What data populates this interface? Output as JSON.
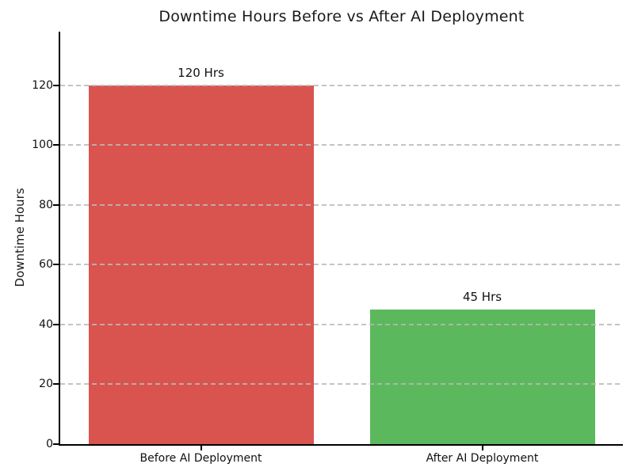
{
  "chart_data": {
    "type": "bar",
    "title": "Downtime Hours Before vs After AI Deployment",
    "xlabel": "",
    "ylabel": "Downtime Hours",
    "categories": [
      "Before AI Deployment",
      "After AI Deployment"
    ],
    "values": [
      120,
      45
    ],
    "bar_labels": [
      "120 Hrs",
      "45 Hrs"
    ],
    "bar_colors": [
      "#d9534f",
      "#5cb85c"
    ],
    "yticks": [
      0,
      20,
      40,
      60,
      80,
      100,
      120
    ],
    "ylim": [
      0,
      138
    ],
    "grid": "horizontal dashed, drawn above bars",
    "grid_color": "#bdbdbd",
    "axis_color": "#000000",
    "text_color": "#1a1a1a",
    "legend": "none",
    "spines": [
      "left",
      "bottom"
    ]
  }
}
